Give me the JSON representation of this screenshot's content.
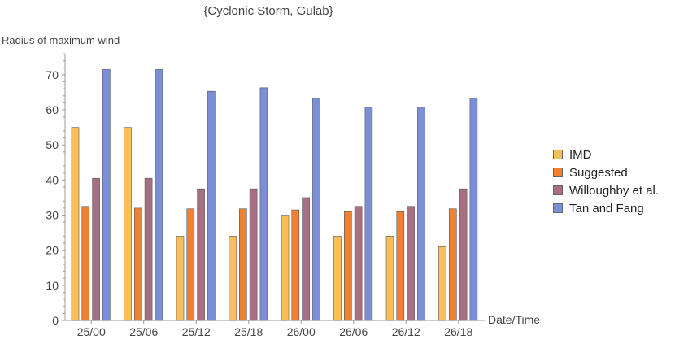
{
  "chart_data": {
    "type": "bar",
    "title": "{Cyclonic Storm, Gulab}",
    "ylabel": "Radius of maximum wind",
    "xlabel": "Date/Time",
    "categories": [
      "25/00",
      "25/06",
      "25/12",
      "25/18",
      "26/00",
      "26/06",
      "26/12",
      "26/18"
    ],
    "ylim": [
      0,
      76
    ],
    "yticks": [
      0,
      10,
      20,
      30,
      40,
      50,
      60,
      70
    ],
    "grid": false,
    "legend_position": "right",
    "series": [
      {
        "name": "IMD",
        "color": "#F9BE5A",
        "values": [
          55,
          55,
          24,
          24,
          30,
          24,
          24,
          21
        ]
      },
      {
        "name": "Suggested",
        "color": "#EF8131",
        "values": [
          32.5,
          32,
          31.8,
          31.8,
          31.5,
          31,
          31,
          31.8
        ]
      },
      {
        "name": "Willoughby et al.",
        "color": "#A86F83",
        "values": [
          40.5,
          40.5,
          37.5,
          37.5,
          35,
          32.5,
          32.5,
          37.5
        ]
      },
      {
        "name": "Tan and Fang",
        "color": "#7B8FD6",
        "values": [
          71.5,
          71.5,
          65.3,
          66.3,
          63.3,
          60.8,
          60.8,
          63.3
        ]
      }
    ]
  }
}
